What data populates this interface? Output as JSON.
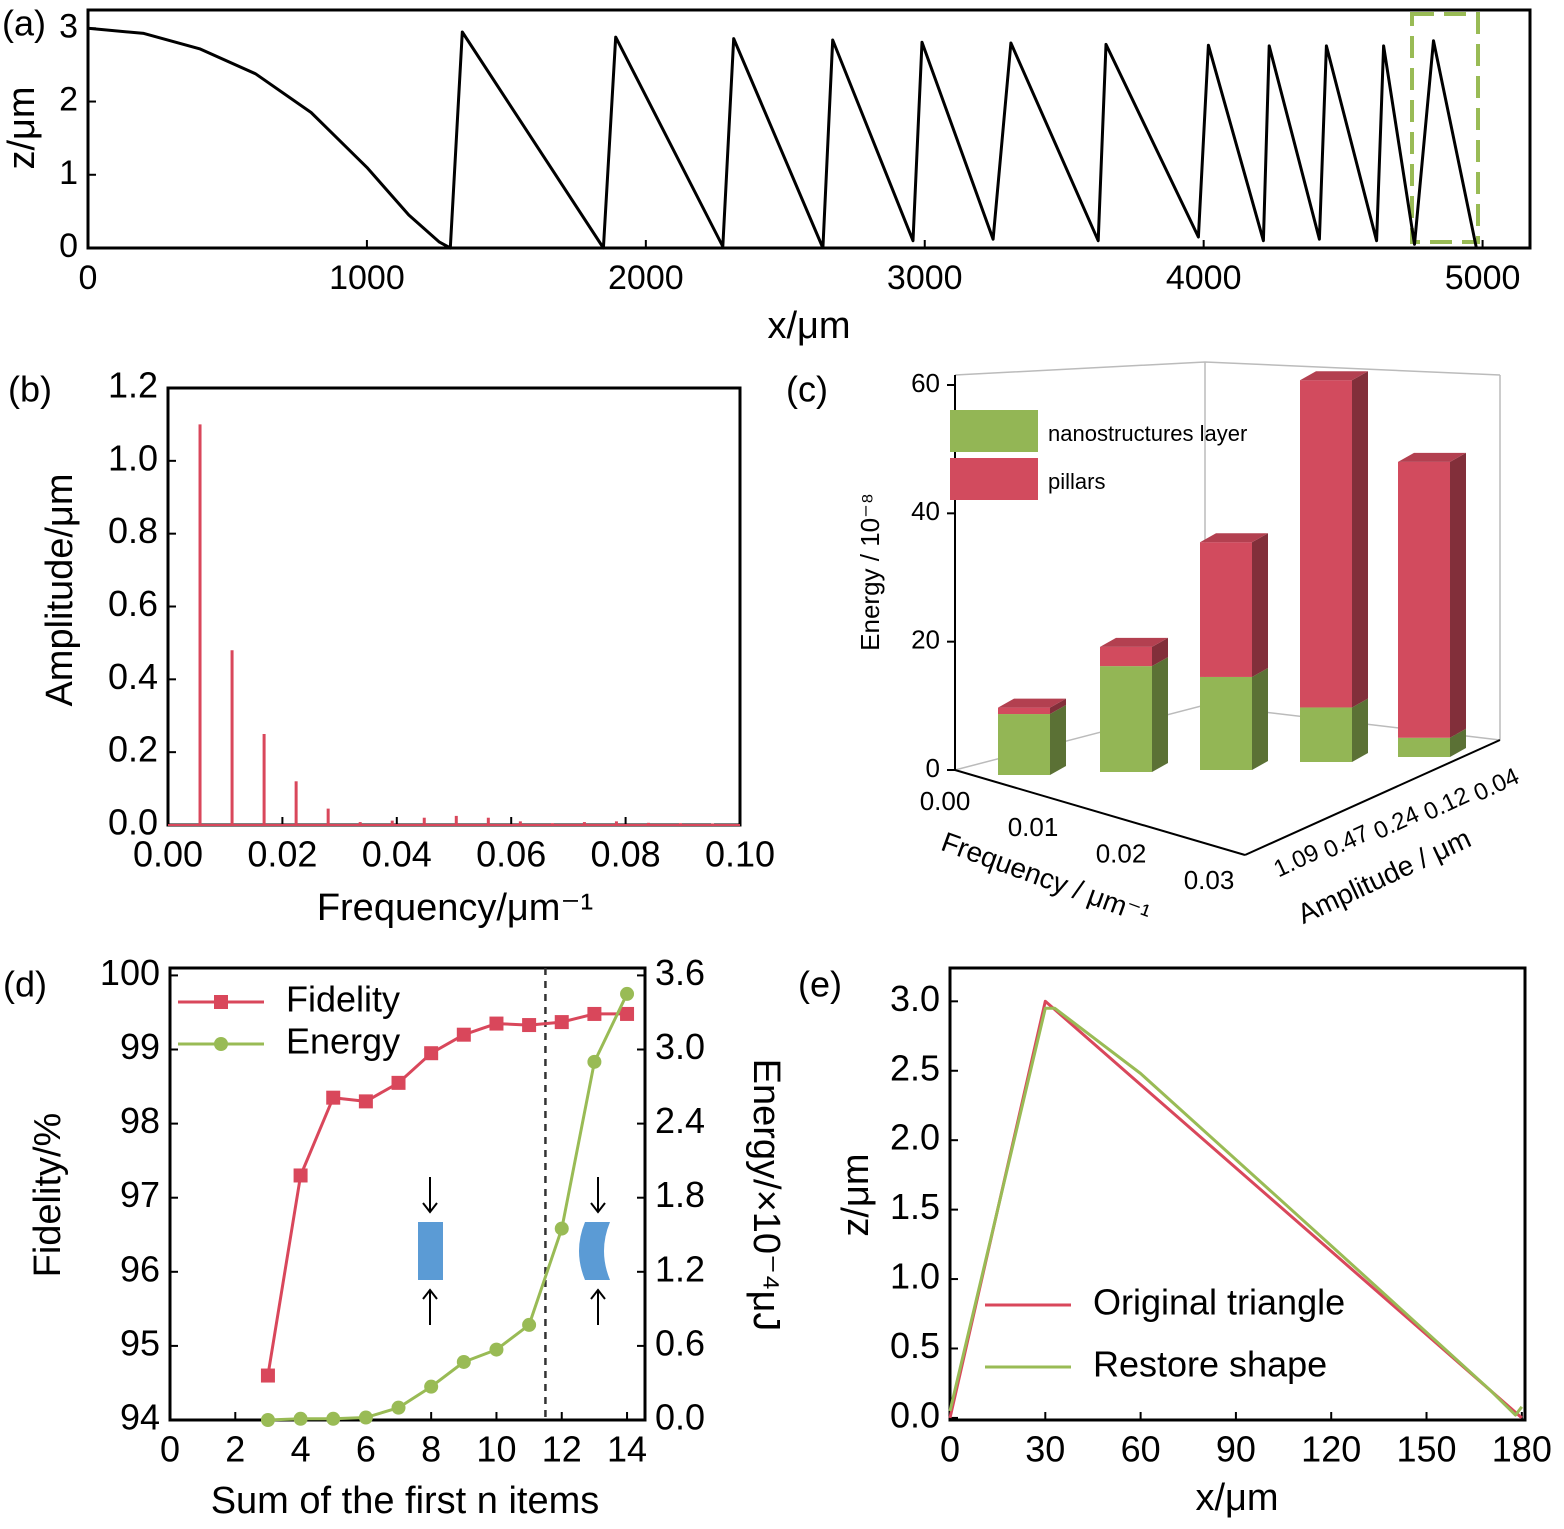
{
  "chart_data": [
    {
      "type": "line",
      "panel_label": "(a)",
      "xlabel": "x/μm",
      "ylabel": "z/μm",
      "xlim": [
        0,
        5170
      ],
      "ylim": [
        0,
        3.25
      ],
      "xticks": [
        0,
        1000,
        2000,
        3000,
        4000,
        5000
      ],
      "yticks": [
        0,
        1,
        2,
        3
      ],
      "series": [
        {
          "color": "#000000",
          "x": [
            0,
            200,
            400,
            600,
            800,
            1000,
            1150,
            1260,
            1299,
            1342,
            1848,
            1892,
            2276,
            2315,
            2635,
            2670,
            2958,
            2990,
            3245,
            3309,
            3622,
            3650,
            3981,
            4017,
            4214,
            4235,
            4415,
            4440,
            4620,
            4645,
            4756,
            4824,
            4978
          ],
          "values": [
            3,
            2.93,
            2.72,
            2.38,
            1.85,
            1.1,
            0.45,
            0.08,
            0,
            2.95,
            0,
            2.88,
            0.02,
            2.86,
            0,
            2.84,
            0.1,
            2.81,
            0.12,
            2.8,
            0.1,
            2.78,
            0.15,
            2.77,
            0.1,
            2.76,
            0.12,
            2.76,
            0.1,
            2.76,
            0.05,
            2.83,
            0
          ]
        }
      ]
    },
    {
      "type": "stem",
      "panel_label": "(b)",
      "xlabel": "Frequency/μm⁻¹",
      "ylabel": "Amplitude/μm",
      "xlim": [
        0,
        0.1
      ],
      "ylim": [
        0,
        1.2
      ],
      "xticks": [
        {
          "value": 0,
          "label": "0.00"
        },
        0.02,
        0.04,
        0.06,
        0.08,
        {
          "value": 0.1,
          "label": "0.10"
        }
      ],
      "yticks": [
        {
          "value": 0,
          "label": "0.0"
        },
        0.2,
        0.4,
        0.6,
        0.8,
        {
          "value": 1,
          "label": "1.0"
        },
        1.2
      ],
      "series": [
        {
          "color": "#d9475b",
          "x": [
            0.0056,
            0.0112,
            0.0168,
            0.0224,
            0.028,
            0.0336,
            0.0392,
            0.0448,
            0.0504,
            0.056,
            0.0616,
            0.0672,
            0.0728,
            0.0784,
            0.084,
            0.0896,
            0.0952
          ],
          "values": [
            1.1,
            0.48,
            0.25,
            0.12,
            0.045,
            0.008,
            0.012,
            0.02,
            0.025,
            0.02,
            0.01,
            0.005,
            0.008,
            0.01,
            0.006,
            0.005,
            0.004
          ]
        }
      ]
    },
    {
      "type": "bar3d",
      "panel_label": "(c)",
      "zlabel": "Energy / 10⁻⁸",
      "xlabel": "Frequency / μm⁻¹",
      "ylabel": "Amplitude / μm",
      "zlim": [
        0,
        60
      ],
      "zticks": [
        0,
        20,
        40,
        60
      ],
      "xticks": [
        {
          "value": 0,
          "label": "0.00"
        },
        0.01,
        0.02,
        0.03
      ],
      "yticks": [
        1.09,
        0.47,
        0.24,
        0.12,
        0.04
      ],
      "series": [
        {
          "name": "nanostructures layer",
          "color": "#93b655",
          "values": [
            9.5,
            16.5,
            14.5,
            8.5,
            3
          ]
        },
        {
          "name": "pillars",
          "color": "#d24b5e",
          "values": [
            1,
            3,
            21,
            51,
            43
          ]
        }
      ]
    },
    {
      "type": "line",
      "panel_label": "(d)",
      "xlabel": "Sum of the first n items",
      "ylabel": "Fidelity/%",
      "y2label": "Energy/×10⁻⁴μJ",
      "xlim": [
        0,
        14.55
      ],
      "ylim": [
        94,
        100.1
      ],
      "y2lim": [
        0,
        3.66
      ],
      "xticks": [
        0,
        2,
        4,
        6,
        8,
        10,
        12,
        14
      ],
      "yticks": [
        94,
        95,
        96,
        97,
        98,
        99,
        100
      ],
      "y2ticks": [
        {
          "value": 0,
          "label": "0.0"
        },
        0.6,
        1.2,
        1.8,
        2.4,
        {
          "value": 3,
          "label": "3.0"
        },
        3.6
      ],
      "vline": 11.5,
      "series": [
        {
          "name": "Fidelity",
          "color": "#d9475b",
          "marker": "square",
          "x": [
            3,
            4,
            5,
            6,
            7,
            8,
            9,
            10,
            11,
            12,
            13,
            14
          ],
          "values": [
            94.6,
            97.3,
            98.35,
            98.3,
            98.55,
            98.95,
            99.2,
            99.35,
            99.33,
            99.37,
            99.48,
            99.48
          ]
        },
        {
          "name": "Energy",
          "color": "#99bb55",
          "marker": "circle",
          "axis": "y2",
          "x": [
            3,
            4,
            5,
            6,
            7,
            8,
            9,
            10,
            11,
            12,
            13,
            14
          ],
          "values": [
            0,
            0.01,
            0.01,
            0.02,
            0.1,
            0.27,
            0.47,
            0.57,
            0.77,
            1.55,
            2.9,
            3.45
          ]
        }
      ]
    },
    {
      "type": "line",
      "panel_label": "(e)",
      "xlabel": "x/μm",
      "ylabel": "z/μm",
      "xlim": [
        0,
        181
      ],
      "ylim": [
        -0.015,
        3.24
      ],
      "xticks": [
        0,
        30,
        60,
        90,
        120,
        150,
        180
      ],
      "yticks": [
        {
          "value": 0,
          "label": "0.0"
        },
        0.5,
        {
          "value": 1,
          "label": "1.0"
        },
        1.5,
        {
          "value": 2,
          "label": "2.0"
        },
        2.5,
        {
          "value": 3,
          "label": "3.0"
        }
      ],
      "series": [
        {
          "name": "Original triangle",
          "color": "#d9475b",
          "x": [
            0,
            30,
            180
          ],
          "values": [
            0,
            3,
            0
          ]
        },
        {
          "name": "Restore shape",
          "color": "#99bb55",
          "x": [
            0,
            30,
            33,
            60,
            120,
            170,
            178,
            180
          ],
          "values": [
            0.05,
            2.95,
            2.95,
            2.48,
            1.24,
            0.2,
            0.02,
            0.08
          ]
        }
      ]
    }
  ]
}
